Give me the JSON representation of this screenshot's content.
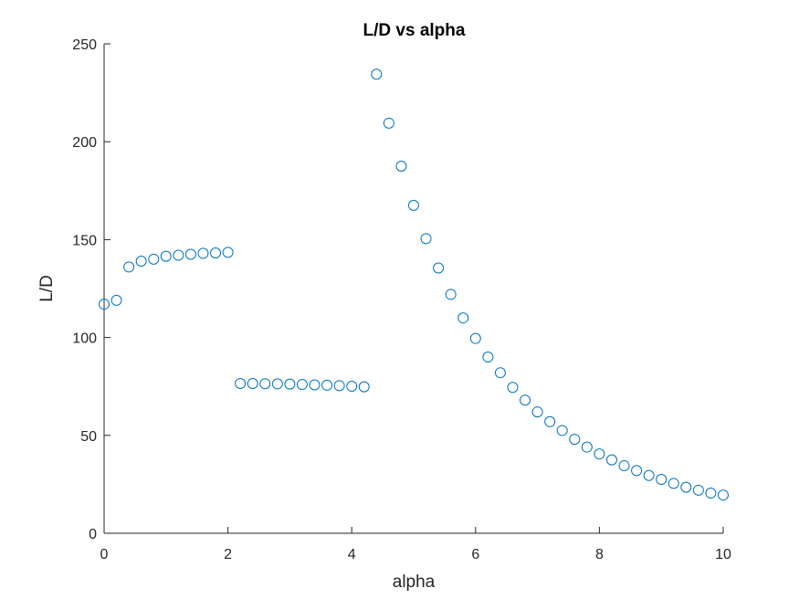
{
  "chart_data": {
    "type": "scatter",
    "title": "L/D vs alpha",
    "xlabel": "alpha",
    "ylabel": "L/D",
    "xlim": [
      0,
      10
    ],
    "ylim": [
      0,
      250
    ],
    "xticks": [
      0,
      2,
      4,
      6,
      8,
      10
    ],
    "yticks": [
      0,
      50,
      100,
      150,
      200,
      250
    ],
    "grid": false,
    "marker": "circle-open",
    "color": "#0072BD",
    "series": [
      {
        "x": [
          0,
          0.2,
          0.4,
          0.6,
          0.8,
          1.0,
          1.2,
          1.4,
          1.6,
          1.8,
          2.0,
          2.2,
          2.4,
          2.6,
          2.8,
          3.0,
          3.2,
          3.4,
          3.6,
          3.8,
          4.0,
          4.2,
          4.4,
          4.6,
          4.8,
          5.0,
          5.2,
          5.4,
          5.6,
          5.8,
          6.0,
          6.2,
          6.4,
          6.6,
          6.8,
          7.0,
          7.2,
          7.4,
          7.6,
          7.8,
          8.0,
          8.2,
          8.4,
          8.6,
          8.8,
          9.0,
          9.2,
          9.4,
          9.6,
          9.8,
          10.0
        ],
        "y": [
          117,
          119,
          136,
          139,
          140,
          141.5,
          142,
          142.5,
          143,
          143.2,
          143.5,
          76.5,
          76.5,
          76.4,
          76.3,
          76.2,
          76.0,
          75.8,
          75.6,
          75.4,
          75.1,
          74.8,
          234.5,
          209.5,
          187.5,
          167.5,
          150.5,
          135.5,
          122,
          110,
          99.5,
          90,
          82,
          74.5,
          68,
          62,
          57,
          52.5,
          48,
          44,
          40.5,
          37.5,
          34.5,
          32,
          29.5,
          27.5,
          25.5,
          23.5,
          22,
          20.5,
          19.5
        ]
      }
    ]
  }
}
